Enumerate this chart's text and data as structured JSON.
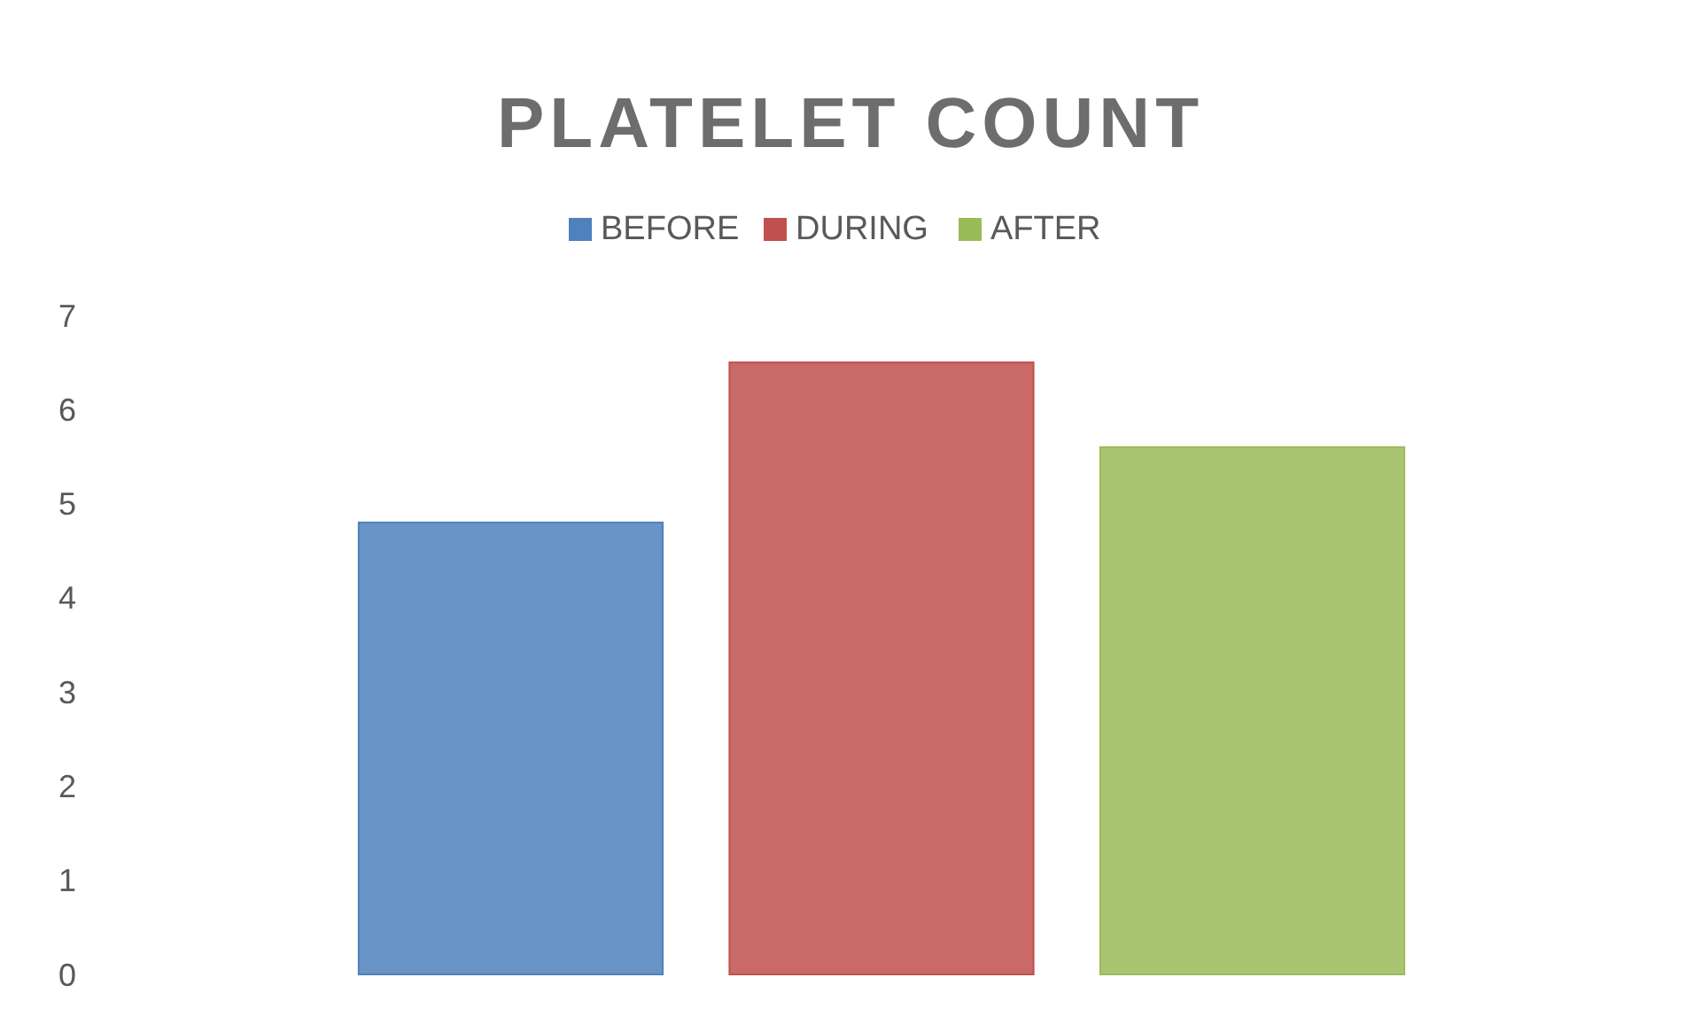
{
  "chart_data": {
    "type": "bar",
    "title": "PLATELET COUNT",
    "categories": [
      null
    ],
    "series": [
      {
        "name": "BEFORE",
        "color": "#4f81bd",
        "values": [
          4.8
        ]
      },
      {
        "name": "DURING",
        "color": "#c0504d",
        "values": [
          6.5
        ]
      },
      {
        "name": "AFTER",
        "color": "#9bbb59",
        "values": [
          5.6
        ]
      }
    ],
    "ylim": [
      0,
      7
    ],
    "yticks": [
      0,
      1,
      2,
      3,
      4,
      5,
      6,
      7
    ],
    "grid": false,
    "legend": "top"
  }
}
